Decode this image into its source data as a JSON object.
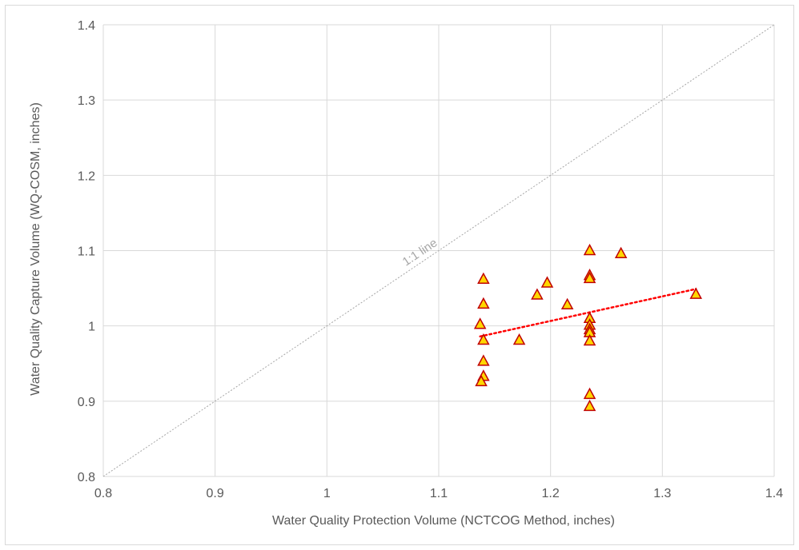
{
  "chart_data": {
    "type": "scatter",
    "title": "",
    "xlabel": "Water Quality Protection Volume (NCTCOG Method, inches)",
    "ylabel": "Water Quality Capture Volume (WQ-COSM, inches)",
    "xlim": [
      0.8,
      1.4
    ],
    "ylim": [
      0.8,
      1.4
    ],
    "xticks": [
      "0.8",
      "0.9",
      "1",
      "1.1",
      "1.2",
      "1.3",
      "1.4"
    ],
    "yticks": [
      "0.8",
      "0.9",
      "1",
      "1.1",
      "1.2",
      "1.3",
      "1.4"
    ],
    "grid": true,
    "legend": "none",
    "series": [
      {
        "marker": "triangle",
        "fill": "#ffd700",
        "stroke": "#c00000",
        "points": [
          [
            1.14,
            1.062
          ],
          [
            1.14,
            1.029
          ],
          [
            1.137,
            1.002
          ],
          [
            1.14,
            0.981
          ],
          [
            1.14,
            0.953
          ],
          [
            1.14,
            0.933
          ],
          [
            1.138,
            0.926
          ],
          [
            1.172,
            0.981
          ],
          [
            1.188,
            1.041
          ],
          [
            1.197,
            1.057
          ],
          [
            1.215,
            1.028
          ],
          [
            1.235,
            1.1
          ],
          [
            1.235,
            1.067
          ],
          [
            1.235,
            1.063
          ],
          [
            1.235,
            1.01
          ],
          [
            1.235,
            1.001
          ],
          [
            1.235,
            0.995
          ],
          [
            1.235,
            0.991
          ],
          [
            1.235,
            0.98
          ],
          [
            1.235,
            0.909
          ],
          [
            1.235,
            0.893
          ],
          [
            1.263,
            1.096
          ],
          [
            1.33,
            1.042
          ]
        ]
      }
    ],
    "trendline": {
      "style": "dotted",
      "color": "#ff0000",
      "x": [
        1.137,
        1.33
      ],
      "y": [
        0.986,
        1.049
      ]
    },
    "reference_line": {
      "label": "1:1 line",
      "color": "#a6a6a6",
      "x": [
        0.8,
        1.4
      ],
      "y": [
        0.8,
        1.4
      ]
    }
  }
}
